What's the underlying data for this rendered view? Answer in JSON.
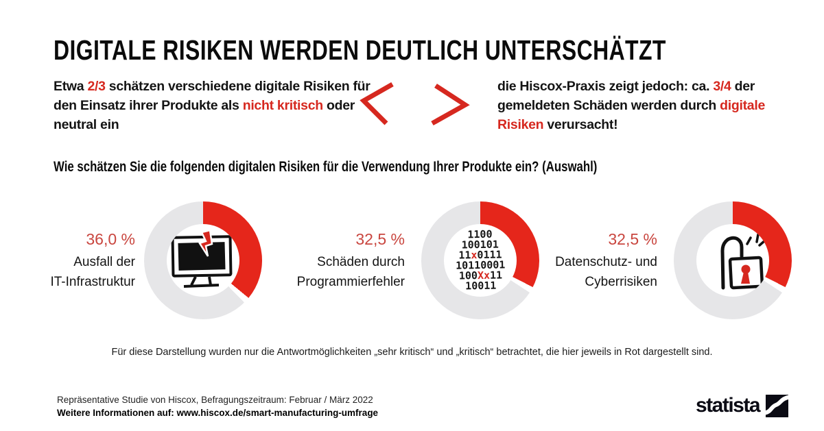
{
  "colors": {
    "text_red": "#d6281f",
    "percent_red": "#c9463f",
    "arc_red": "#e5261b",
    "donut_rest": "#e6e6e8",
    "text_black": "#141414"
  },
  "header": {
    "title": "DIGITALE RISIKEN WERDEN DEUTLICH UNTERSCHÄTZT"
  },
  "comparison": {
    "left_segments": [
      {
        "t": "Etwa "
      },
      {
        "t": "2/3",
        "red": true
      },
      {
        "t": " schätzen verschiedene digitale Risiken für den Einsatz ihrer Produkte als "
      },
      {
        "t": "nicht kritisch",
        "red": true
      },
      {
        "t": " oder neutral ein"
      }
    ],
    "right_segments": [
      {
        "t": "die Hiscox-Praxis zeigt jedoch: ca. "
      },
      {
        "t": "3/4",
        "red": true
      },
      {
        "t": " der gemeldeten Schäden werden durch "
      },
      {
        "t": "digitale Risiken",
        "red": true
      },
      {
        "t": " verursacht!"
      }
    ]
  },
  "question": "Wie schätzen Sie die folgenden digitalen Risiken für die Verwendung Ihrer Produkte ein? (Auswahl)",
  "chart_data": [
    {
      "type": "pie",
      "subtype": "donut",
      "title": "Ausfall der IT-Infrastruktur",
      "value_label": "36,0 %",
      "caption_lines": [
        "Ausfall der",
        "IT-Infrastruktur"
      ],
      "values": [
        36.0,
        64.0
      ],
      "slice_labels": [
        "sehr kritisch + kritisch (rot)",
        "Rest"
      ],
      "highlight_color": "#e5261b",
      "rest_color": "#e6e6e8",
      "icon": "crashed-monitor-icon"
    },
    {
      "type": "pie",
      "subtype": "donut",
      "title": "Schäden durch Programmierfehler",
      "value_label": "32,5 %",
      "caption_lines": [
        "Schäden durch",
        "Programmierfehler"
      ],
      "values": [
        32.5,
        67.5
      ],
      "slice_labels": [
        "sehr kritisch + kritisch (rot)",
        "Rest"
      ],
      "highlight_color": "#e5261b",
      "rest_color": "#e6e6e8",
      "icon": "binary-code-icon"
    },
    {
      "type": "pie",
      "subtype": "donut",
      "title": "Datenschutz- und Cyberrisiken",
      "value_label": "32,5 %",
      "caption_lines": [
        "Datenschutz- und",
        "Cyberrisiken"
      ],
      "values": [
        32.5,
        67.5
      ],
      "slice_labels": [
        "sehr kritisch + kritisch (rot)",
        "Rest"
      ],
      "highlight_color": "#e5261b",
      "rest_color": "#e6e6e8",
      "icon": "open-padlock-icon"
    }
  ],
  "icons": {
    "binary_lines": [
      [
        {
          "t": "1100"
        }
      ],
      [
        {
          "t": "100101"
        }
      ],
      [
        {
          "t": "11"
        },
        {
          "t": "x",
          "red": true
        },
        {
          "t": "0111"
        }
      ],
      [
        {
          "t": "10110001"
        }
      ],
      [
        {
          "t": "100"
        },
        {
          "t": "Xx",
          "red": true
        },
        {
          "t": "11"
        }
      ],
      [
        {
          "t": "10011"
        }
      ]
    ]
  },
  "footnote": "Für diese Darstellung wurden nur die Antwortmöglichkeiten „sehr kritisch“ und „kritisch“ betrachtet, die hier jeweils in Rot dargestellt sind.",
  "source": {
    "study": "Repräsentative Studie von Hiscox, Befragungszeitraum: Februar / März 2022",
    "more_info": "Weitere Informationen auf: www.hiscox.de/smart-manufacturing-umfrage"
  },
  "branding": {
    "logo_text": "statista"
  }
}
